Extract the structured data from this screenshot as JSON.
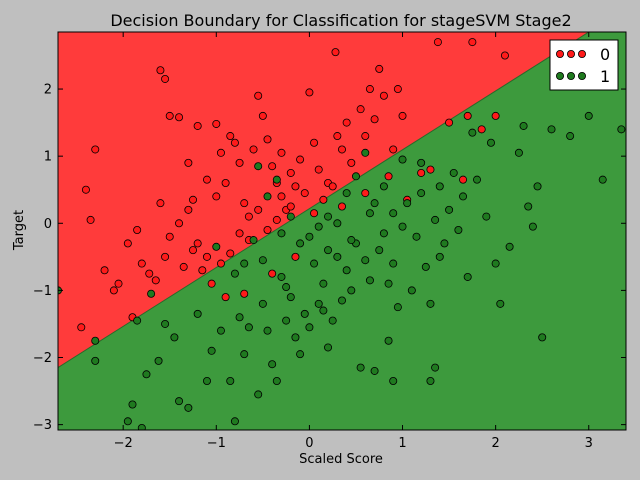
{
  "chart_data": {
    "type": "scatter",
    "title": "Decision Boundary for Classification for stageSVM Stage2",
    "xlabel": "Scaled Score",
    "ylabel": "Target",
    "xlim": [
      -2.7,
      3.4
    ],
    "ylim": [
      -3.08,
      2.85
    ],
    "xticks": [
      -2,
      -1,
      0,
      1,
      2,
      3
    ],
    "xtick_labels": [
      "−2",
      "−1",
      "0",
      "1",
      "2",
      "3"
    ],
    "yticks": [
      -3,
      -2,
      -1,
      0,
      1,
      2
    ],
    "ytick_labels": [
      "−3",
      "−2",
      "−1",
      "0",
      "1",
      "2"
    ],
    "grid": false,
    "legend_position": "top-right",
    "decision_boundary": {
      "x": [
        -2.7,
        3.4
      ],
      "y": [
        -2.15,
        3.2
      ]
    },
    "regions": [
      {
        "class": "0",
        "side": "above",
        "color": "#ff3b3b"
      },
      {
        "class": "1",
        "side": "below",
        "color": "#3d9a3d"
      }
    ],
    "series": [
      {
        "name": "0",
        "color": "#ff1a1a",
        "points": [
          [
            -2.3,
            1.1
          ],
          [
            -1.6,
            2.28
          ],
          [
            -1.55,
            2.15
          ],
          [
            -1.5,
            1.6
          ],
          [
            -1.4,
            1.58
          ],
          [
            -1.3,
            0.9
          ],
          [
            -1.25,
            0.35
          ],
          [
            -1.2,
            1.45
          ],
          [
            -1.2,
            -0.3
          ],
          [
            -1.1,
            -0.5
          ],
          [
            -1.0,
            1.48
          ],
          [
            -0.95,
            1.05
          ],
          [
            -0.9,
            0.6
          ],
          [
            -0.85,
            1.3
          ],
          [
            -0.8,
            1.2
          ],
          [
            -0.75,
            0.9
          ],
          [
            -0.7,
            0.3
          ],
          [
            -0.65,
            0.1
          ],
          [
            -0.6,
            1.1
          ],
          [
            -0.55,
            1.9
          ],
          [
            -0.5,
            1.6
          ],
          [
            -0.45,
            1.25
          ],
          [
            -0.4,
            0.85
          ],
          [
            -0.35,
            0.6
          ],
          [
            -0.3,
            0.4
          ],
          [
            -0.25,
            0.2
          ],
          [
            -0.2,
            0.75
          ],
          [
            -0.15,
            0.55
          ],
          [
            -0.1,
            0.95
          ],
          [
            0.0,
            1.95
          ],
          [
            0.05,
            1.2
          ],
          [
            0.1,
            0.8
          ],
          [
            0.2,
            0.6
          ],
          [
            0.28,
            2.55
          ],
          [
            0.3,
            1.3
          ],
          [
            0.35,
            1.1
          ],
          [
            0.4,
            1.5
          ],
          [
            0.45,
            0.9
          ],
          [
            0.55,
            1.7
          ],
          [
            0.6,
            1.3
          ],
          [
            0.65,
            2.0
          ],
          [
            0.7,
            1.55
          ],
          [
            0.75,
            2.3
          ],
          [
            0.8,
            1.9
          ],
          [
            0.9,
            1.1
          ],
          [
            0.95,
            2.0
          ],
          [
            1.0,
            1.6
          ],
          [
            1.05,
            0.35
          ],
          [
            1.2,
            0.75
          ],
          [
            1.3,
            0.8
          ],
          [
            1.38,
            2.7
          ],
          [
            1.5,
            1.5
          ],
          [
            1.65,
            0.65
          ],
          [
            1.7,
            1.6
          ],
          [
            1.85,
            1.4
          ],
          [
            2.0,
            1.6
          ],
          [
            2.1,
            2.5
          ],
          [
            1.75,
            2.7
          ],
          [
            -2.4,
            0.5
          ],
          [
            -2.35,
            0.05
          ],
          [
            -2.2,
            -0.7
          ],
          [
            -2.1,
            -1.0
          ],
          [
            -2.05,
            -0.9
          ],
          [
            -1.95,
            -0.3
          ],
          [
            -1.85,
            -0.1
          ],
          [
            -1.8,
            -0.6
          ],
          [
            -1.72,
            -0.75
          ],
          [
            -1.65,
            -0.85
          ],
          [
            -1.55,
            -0.5
          ],
          [
            -1.5,
            -0.2
          ],
          [
            -1.4,
            0.0
          ],
          [
            -1.35,
            -0.65
          ],
          [
            -1.25,
            -0.4
          ],
          [
            -1.15,
            -0.7
          ],
          [
            -1.05,
            -0.9
          ],
          [
            -0.95,
            -0.6
          ],
          [
            -0.85,
            -0.45
          ],
          [
            -0.75,
            -0.15
          ],
          [
            -0.65,
            -0.25
          ],
          [
            -0.55,
            0.2
          ],
          [
            -0.45,
            -0.1
          ],
          [
            -0.35,
            0.05
          ],
          [
            -0.2,
            0.25
          ],
          [
            -0.05,
            0.45
          ],
          [
            0.05,
            0.15
          ],
          [
            0.15,
            0.35
          ],
          [
            0.25,
            0.55
          ],
          [
            -0.7,
            -1.05
          ],
          [
            -0.9,
            -1.1
          ],
          [
            -0.4,
            -0.75
          ],
          [
            -0.15,
            -0.5
          ],
          [
            0.35,
            0.25
          ],
          [
            0.6,
            0.45
          ],
          [
            0.85,
            0.7
          ],
          [
            -1.1,
            0.65
          ],
          [
            -1.3,
            0.2
          ],
          [
            -1.6,
            0.3
          ],
          [
            -2.45,
            -1.55
          ],
          [
            -1.9,
            -1.4
          ],
          [
            -1.0,
            0.4
          ],
          [
            -0.3,
            1.05
          ]
        ]
      },
      {
        "name": "1",
        "color": "#1f7a1f",
        "points": [
          [
            -2.3,
            -1.75
          ],
          [
            -2.3,
            -2.05
          ],
          [
            -1.85,
            -1.45
          ],
          [
            -1.75,
            -2.25
          ],
          [
            -1.7,
            -1.05
          ],
          [
            -1.62,
            -2.05
          ],
          [
            -1.55,
            -1.5
          ],
          [
            -1.45,
            -1.7
          ],
          [
            -1.4,
            -2.65
          ],
          [
            -1.3,
            -2.75
          ],
          [
            -1.2,
            -1.35
          ],
          [
            -1.1,
            -2.35
          ],
          [
            -1.05,
            -1.9
          ],
          [
            -0.95,
            -1.6
          ],
          [
            -0.85,
            -2.35
          ],
          [
            -0.8,
            -2.95
          ],
          [
            -0.75,
            -1.4
          ],
          [
            -0.7,
            -1.95
          ],
          [
            -0.65,
            -1.55
          ],
          [
            -0.55,
            -2.55
          ],
          [
            -0.5,
            -1.2
          ],
          [
            -0.45,
            -1.6
          ],
          [
            -0.4,
            -2.1
          ],
          [
            -0.35,
            -2.35
          ],
          [
            -0.3,
            -0.8
          ],
          [
            -0.25,
            -1.45
          ],
          [
            -0.2,
            -1.1
          ],
          [
            -0.15,
            -1.7
          ],
          [
            -0.1,
            -1.95
          ],
          [
            -0.05,
            -1.35
          ],
          [
            0.0,
            -1.55
          ],
          [
            0.05,
            -0.6
          ],
          [
            0.1,
            -1.2
          ],
          [
            0.15,
            -0.9
          ],
          [
            0.2,
            -1.85
          ],
          [
            0.25,
            -1.45
          ],
          [
            0.3,
            -0.5
          ],
          [
            0.35,
            -1.15
          ],
          [
            0.4,
            -0.7
          ],
          [
            0.45,
            -1.0
          ],
          [
            0.5,
            -0.3
          ],
          [
            0.55,
            -2.15
          ],
          [
            0.6,
            -0.55
          ],
          [
            0.65,
            -0.85
          ],
          [
            0.7,
            -2.2
          ],
          [
            0.75,
            -0.4
          ],
          [
            0.8,
            -0.15
          ],
          [
            0.85,
            -0.9
          ],
          [
            0.9,
            -0.6
          ],
          [
            0.95,
            -1.25
          ],
          [
            1.0,
            -0.05
          ],
          [
            1.05,
            0.3
          ],
          [
            1.1,
            -1.0
          ],
          [
            1.15,
            -0.2
          ],
          [
            1.2,
            0.45
          ],
          [
            1.25,
            -0.65
          ],
          [
            1.3,
            -1.2
          ],
          [
            1.35,
            0.05
          ],
          [
            1.4,
            0.55
          ],
          [
            1.45,
            -0.3
          ],
          [
            1.5,
            0.2
          ],
          [
            1.55,
            0.75
          ],
          [
            1.6,
            -0.1
          ],
          [
            1.65,
            0.4
          ],
          [
            1.7,
            -0.8
          ],
          [
            1.8,
            0.65
          ],
          [
            1.9,
            0.1
          ],
          [
            2.0,
            -0.6
          ],
          [
            2.05,
            -1.2
          ],
          [
            2.15,
            -0.35
          ],
          [
            2.25,
            1.05
          ],
          [
            2.35,
            0.25
          ],
          [
            2.4,
            -0.05
          ],
          [
            2.45,
            0.55
          ],
          [
            2.5,
            -1.7
          ],
          [
            2.6,
            1.4
          ],
          [
            2.8,
            1.3
          ],
          [
            3.0,
            1.6
          ],
          [
            3.15,
            0.65
          ],
          [
            3.35,
            1.4
          ],
          [
            2.3,
            1.45
          ],
          [
            0.3,
            0.0
          ],
          [
            0.5,
            0.7
          ],
          [
            0.7,
            0.3
          ],
          [
            0.9,
            0.15
          ],
          [
            1.0,
            0.95
          ],
          [
            0.6,
            1.05
          ],
          [
            0.45,
            -0.25
          ],
          [
            0.1,
            -0.05
          ],
          [
            -0.1,
            -0.3
          ],
          [
            -0.3,
            -0.15
          ],
          [
            -0.5,
            -0.55
          ],
          [
            -0.6,
            -0.25
          ],
          [
            -0.8,
            -0.75
          ],
          [
            -1.0,
            -0.35
          ],
          [
            -0.2,
            0.1
          ],
          [
            0.0,
            -0.2
          ],
          [
            0.2,
            0.1
          ],
          [
            0.4,
            0.45
          ],
          [
            0.8,
            0.55
          ],
          [
            1.2,
            0.9
          ],
          [
            1.4,
            -0.5
          ],
          [
            1.75,
            1.35
          ],
          [
            1.95,
            1.2
          ],
          [
            -0.45,
            0.4
          ],
          [
            -0.35,
            0.65
          ],
          [
            -0.55,
            0.85
          ],
          [
            -0.25,
            -0.95
          ],
          [
            0.2,
            -0.4
          ],
          [
            0.65,
            0.15
          ],
          [
            1.35,
            -2.15
          ],
          [
            1.3,
            -2.35
          ],
          [
            0.9,
            -2.35
          ],
          [
            0.85,
            -1.75
          ],
          [
            0.15,
            -1.3
          ],
          [
            -0.7,
            -0.6
          ],
          [
            -2.7,
            -1.0
          ],
          [
            -1.8,
            -3.05
          ],
          [
            -1.95,
            -2.95
          ],
          [
            -1.9,
            -2.7
          ]
        ]
      }
    ]
  }
}
